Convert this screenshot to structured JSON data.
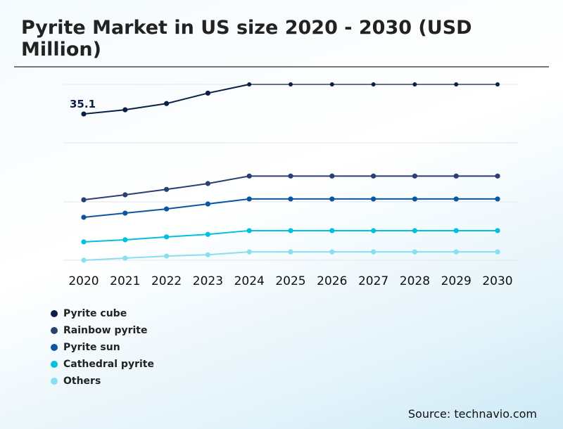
{
  "title": "Pyrite Market in US size 2020 - 2030 (USD Million)",
  "source": "Source: technavio.com",
  "chart_data": {
    "type": "line",
    "title": "Pyrite Market in US size 2020 - 2030 (USD Million)",
    "categories": [
      "2020",
      "2021",
      "2022",
      "2023",
      "2024",
      "2025",
      "2026",
      "2027",
      "2028",
      "2029",
      "2030"
    ],
    "ylim": [
      0,
      42.2
    ],
    "grid": true,
    "legend": "bottom-left",
    "annotation": "35.1",
    "series": [
      {
        "name": "Pyrite cube",
        "color": "#0b1f45",
        "values": [
          35.1,
          36.1,
          37.6,
          40.1,
          42.2,
          42.2,
          42.2,
          42.2,
          42.2,
          42.2,
          42.2
        ]
      },
      {
        "name": "Rainbow pyrite",
        "color": "#2c3f73",
        "values": [
          14.5,
          15.7,
          17.0,
          18.4,
          20.2,
          20.2,
          20.2,
          20.2,
          20.2,
          20.2,
          20.2
        ]
      },
      {
        "name": "Pyrite sun",
        "color": "#0a55a0",
        "values": [
          10.3,
          11.3,
          12.3,
          13.5,
          14.7,
          14.7,
          14.7,
          14.7,
          14.7,
          14.7,
          14.7
        ]
      },
      {
        "name": "Cathedral pyrite",
        "color": "#00c0e0",
        "values": [
          4.4,
          4.9,
          5.6,
          6.2,
          7.1,
          7.1,
          7.1,
          7.1,
          7.1,
          7.1,
          7.1
        ]
      },
      {
        "name": "Others",
        "color": "#88dff0",
        "values": [
          0.0,
          0.5,
          1.0,
          1.3,
          2.0,
          2.0,
          2.0,
          2.0,
          2.0,
          2.0,
          2.0
        ]
      }
    ]
  }
}
